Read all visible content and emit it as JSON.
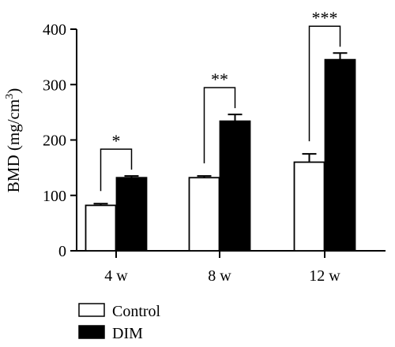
{
  "chart_data": {
    "type": "bar",
    "ylabel": "BMD (mg/cm",
    "ylabel_superscript": "3",
    "ylabel_close": ")",
    "ylim": [
      0,
      400
    ],
    "yticks": [
      0,
      100,
      200,
      300,
      400
    ],
    "categories": [
      "4 w",
      "8 w",
      "12 w"
    ],
    "series": [
      {
        "name": "Control",
        "color": "#ffffff",
        "values": [
          82,
          132,
          160
        ],
        "errors": [
          3,
          3,
          15
        ]
      },
      {
        "name": "DIM",
        "color": "#000000",
        "values": [
          132,
          234,
          345
        ],
        "errors": [
          3,
          12,
          12
        ]
      }
    ],
    "significance": [
      "*",
      "**",
      "***"
    ],
    "legend_position": "bottom-left",
    "grid": false
  }
}
